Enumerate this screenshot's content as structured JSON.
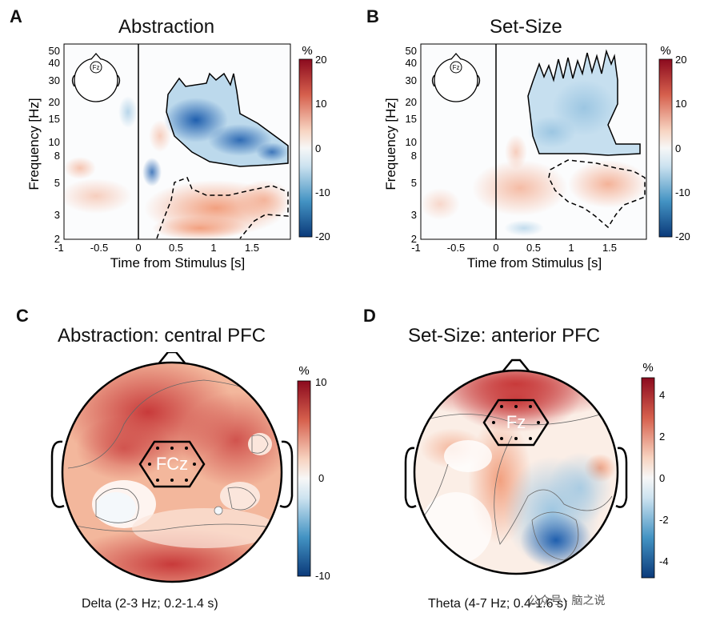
{
  "figure": {
    "panels": [
      {
        "letter": "A",
        "title": "Abstraction"
      },
      {
        "letter": "B",
        "title": "Set-Size"
      },
      {
        "letter": "C",
        "title": "Abstraction: central PFC",
        "electrode": "FCz",
        "band": "Delta (2-3 Hz; 0.2-1.4 s)"
      },
      {
        "letter": "D",
        "title": "Set-Size: anterior PFC",
        "electrode": "Fz",
        "band": "Theta (4-7 Hz; 0.4-1.6 s)"
      }
    ],
    "head_inset_label": "Fz",
    "watermark": "公众号 · 脑之说"
  },
  "chart_data": [
    {
      "type": "heatmap",
      "title": "Abstraction",
      "xlabel": "Time from Stimulus [s]",
      "ylabel": "Frequency [Hz]",
      "x_ticks": [
        "-1",
        "-0.5",
        "0",
        "0.5",
        "1",
        "1.5"
      ],
      "y_ticks": [
        "2",
        "3",
        "5",
        "8",
        "10",
        "15",
        "20",
        "30",
        "40",
        "50"
      ],
      "colorbar": {
        "unit": "%",
        "ticks": [
          "20",
          "10",
          "0",
          "-10",
          "-20"
        ]
      }
    },
    {
      "type": "heatmap",
      "title": "Set-Size",
      "xlabel": "Time from Stimulus [s]",
      "ylabel": "Frequency [Hz]",
      "x_ticks": [
        "-1",
        "-0.5",
        "0",
        "0.5",
        "1",
        "1.5"
      ],
      "y_ticks": [
        "2",
        "3",
        "5",
        "8",
        "10",
        "15",
        "20",
        "30",
        "40",
        "50"
      ],
      "colorbar": {
        "unit": "%",
        "ticks": [
          "20",
          "10",
          "0",
          "-10",
          "-20"
        ]
      }
    },
    {
      "type": "heatmap",
      "title": "Abstraction: central PFC",
      "colorbar": {
        "unit": "%",
        "ticks": [
          "10",
          "0",
          "-10"
        ]
      }
    },
    {
      "type": "heatmap",
      "title": "Set-Size: anterior PFC",
      "colorbar": {
        "unit": "%",
        "ticks": [
          "4",
          "2",
          "0",
          "-2",
          "-4"
        ]
      }
    }
  ],
  "colors": {
    "red": "#b2182b",
    "blue": "#2166ac",
    "neutral": "#ffffff"
  }
}
